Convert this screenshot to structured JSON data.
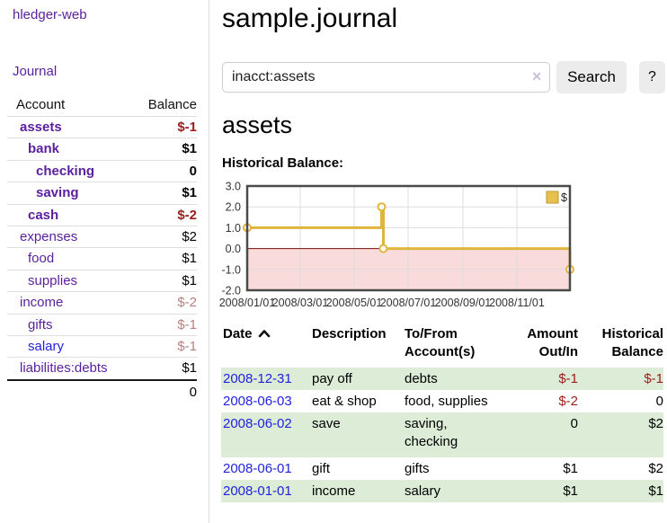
{
  "app": {
    "title": "hledger-web"
  },
  "colors": {
    "link_visited": "#5a1f9e",
    "link_unvisited": "#2222dd",
    "negative": "#9c1b1b",
    "negative_dim": "#bb7f7f",
    "row_alt_green": "#dcecd7",
    "chart_line": "#e0b53e",
    "chart_marker_fill": "#ffffff",
    "chart_negative_fill": "#f9dbdb",
    "chart_zero_line": "#7c0d0d",
    "chart_border": "#4a4a4a",
    "chart_grid": "#dddddd",
    "legend_swatch": "#e8c14c",
    "legend_swatch_border": "#bd9732"
  },
  "sidebar": {
    "journal_link": "Journal",
    "table": {
      "account_header": "Account",
      "balance_header": "Balance",
      "rows": [
        {
          "name": "assets",
          "depth": 0,
          "bold": true,
          "link": "visited",
          "balance": "$-1",
          "balance_class": "neg"
        },
        {
          "name": "bank",
          "depth": 1,
          "bold": true,
          "link": "visited",
          "balance": "$1",
          "balance_class": "normal"
        },
        {
          "name": "checking",
          "depth": 2,
          "bold": true,
          "link": "visited",
          "balance": "0",
          "balance_class": "normal"
        },
        {
          "name": "saving",
          "depth": 2,
          "bold": true,
          "link": "visited",
          "balance": "$1",
          "balance_class": "normal"
        },
        {
          "name": "cash",
          "depth": 1,
          "bold": true,
          "link": "visited",
          "balance": "$-2",
          "balance_class": "neg"
        },
        {
          "name": "expenses",
          "depth": 0,
          "bold": false,
          "link": "visited",
          "balance": "$2",
          "balance_class": "normal"
        },
        {
          "name": "food",
          "depth": 1,
          "bold": false,
          "link": "visited",
          "balance": "$1",
          "balance_class": "normal"
        },
        {
          "name": "supplies",
          "depth": 1,
          "bold": false,
          "link": "visited",
          "balance": "$1",
          "balance_class": "normal"
        },
        {
          "name": "income",
          "depth": 0,
          "bold": false,
          "link": "visited",
          "balance": "$-2",
          "balance_class": "neg-dim"
        },
        {
          "name": "gifts",
          "depth": 1,
          "bold": false,
          "link": "visited",
          "balance": "$-1",
          "balance_class": "neg-dim"
        },
        {
          "name": "salary",
          "depth": 1,
          "bold": false,
          "link": "unvisited",
          "balance": "$-1",
          "balance_class": "neg-dim"
        },
        {
          "name": "liabilities:debts",
          "depth": 0,
          "bold": false,
          "link": "visited",
          "balance": "$1",
          "balance_class": "normal"
        }
      ],
      "total": "0"
    }
  },
  "main": {
    "title": "sample.journal",
    "search": {
      "value": "inacct:assets",
      "clear_icon": "✕",
      "button_label": "Search",
      "help_label": "?"
    },
    "account_heading": "assets",
    "chart_label": "Historical Balance:"
  },
  "chart_data": {
    "type": "line",
    "step": true,
    "series": [
      {
        "name": "$",
        "points": [
          [
            "2008-01-01",
            1
          ],
          [
            "2008-06-01",
            2
          ],
          [
            "2008-06-03",
            0
          ],
          [
            "2008-12-31",
            -1
          ]
        ]
      }
    ],
    "xlim": [
      "2008-01-01",
      "2008-12-31"
    ],
    "ylim": [
      -2,
      3
    ],
    "y_ticks": [
      "3.0",
      "2.0",
      "1.0",
      "0.0",
      "-1.0",
      "-2.0"
    ],
    "y_tick_values": [
      3,
      2,
      1,
      0,
      -1,
      -2
    ],
    "x_ticks": [
      "2008/01/01",
      "2008/03/01",
      "2008/05/01",
      "2008/07/01",
      "2008/09/01",
      "2008/11/01"
    ],
    "legend": {
      "label": "$",
      "position": "top-right"
    },
    "grid": true,
    "negative_region_shaded": true
  },
  "register": {
    "headers": {
      "date": "Date",
      "description": "Description",
      "accounts": "To/From\nAccount(s)",
      "amount": "Amount\nOut/In",
      "balance": "Historical\nBalance"
    },
    "rows": [
      {
        "date": "2008-12-31",
        "description": "pay off",
        "accounts": "debts",
        "accounts_lines": 1,
        "amount": "$-1",
        "amount_neg": true,
        "balance": "$-1",
        "balance_neg": true,
        "alt": true
      },
      {
        "date": "2008-06-03",
        "description": "eat & shop",
        "accounts": "food, supplies",
        "accounts_lines": 1,
        "amount": "$-2",
        "amount_neg": true,
        "balance": "0",
        "balance_neg": false,
        "alt": false
      },
      {
        "date": "2008-06-02",
        "description": "save",
        "accounts": "saving,\nchecking",
        "accounts_lines": 2,
        "amount": "0",
        "amount_neg": false,
        "balance": "$2",
        "balance_neg": false,
        "alt": true
      },
      {
        "date": "2008-06-01",
        "description": "gift",
        "accounts": "gifts",
        "accounts_lines": 1,
        "amount": "$1",
        "amount_neg": false,
        "balance": "$2",
        "balance_neg": false,
        "alt": false
      },
      {
        "date": "2008-01-01",
        "description": "income",
        "accounts": "salary",
        "accounts_lines": 1,
        "amount": "$1",
        "amount_neg": false,
        "balance": "$1",
        "balance_neg": false,
        "alt": true
      }
    ]
  }
}
